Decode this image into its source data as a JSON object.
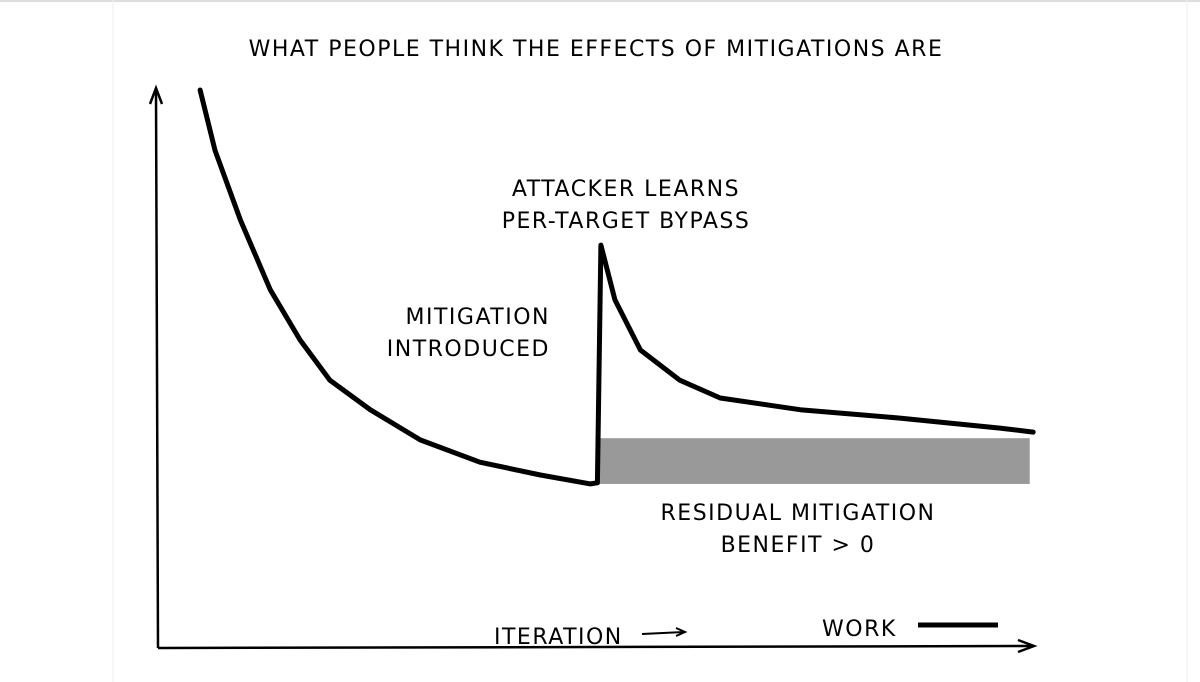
{
  "chart_data": {
    "type": "line",
    "title": "WHAT PEOPLE THINK THE EFFECTS OF MITIGATIONS ARE",
    "x_label": "ITERATION",
    "xlim": [
      0,
      100
    ],
    "ylim": [
      0,
      100
    ],
    "series": [
      {
        "name": "WORK",
        "color": "#000000",
        "x": [
          4.8,
          6.5,
          9.4,
          12.8,
          16.2,
          19.6,
          24.2,
          29.9,
          36.7,
          43.6,
          49.3,
          50.1,
          50.5,
          52.1,
          55.0,
          59.5,
          64.1,
          73.2,
          84.6,
          96.0,
          99.8
        ],
        "values": [
          100,
          89.2,
          76.7,
          64.2,
          55.2,
          48.0,
          42.7,
          37.3,
          33.3,
          31.0,
          29.4,
          29.6,
          72.2,
          62.4,
          53.4,
          48.0,
          44.8,
          42.7,
          41.2,
          39.4,
          38.7
        ]
      }
    ],
    "band": {
      "label": "RESIDUAL MITIGATION BENEFIT > 0",
      "color": "#999999",
      "x": [
        50.2,
        99.4
      ],
      "y": [
        29.4,
        37.6
      ]
    },
    "annotations": [
      "MITIGATION INTRODUCED",
      "ATTACKER LEARNS PER-TARGET BYPASS"
    ]
  }
}
